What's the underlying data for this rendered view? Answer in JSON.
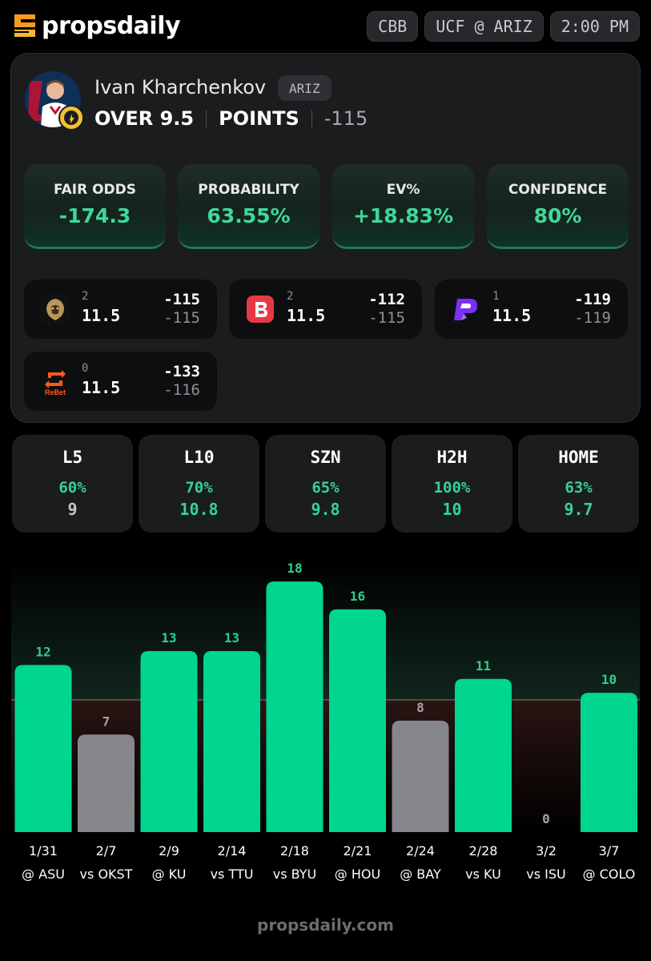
{
  "header": {
    "brand": "propsdaily",
    "pills": [
      "CBB",
      "UCF @ ARIZ",
      "2:00 PM"
    ]
  },
  "player": {
    "name": "Ivan Kharchenkov",
    "team": "ARIZ",
    "side_line": "OVER 9.5",
    "stat": "POINTS",
    "odds": "-115"
  },
  "metrics": [
    {
      "label": "FAIR ODDS",
      "value": "-174.3"
    },
    {
      "label": "PROBABILITY",
      "value": "63.55%"
    },
    {
      "label": "EV%",
      "value": "+18.83%"
    },
    {
      "label": "CONFIDENCE",
      "value": "80%"
    }
  ],
  "books": [
    {
      "icon": "lion-book-icon",
      "count": "2",
      "line": "11.5",
      "over": "-115",
      "under": "-115"
    },
    {
      "icon": "betr-b-icon",
      "count": "2",
      "line": "11.5",
      "over": "-112",
      "under": "-115"
    },
    {
      "icon": "prizepicks-p-icon",
      "count": "1",
      "line": "11.5",
      "over": "-119",
      "under": "-119"
    },
    {
      "icon": "rebet-icon",
      "count": "0",
      "line": "11.5",
      "over": "-133",
      "under": "-116",
      "brand_text": "ReBet"
    }
  ],
  "splits": [
    {
      "label": "L5",
      "pct": "60%",
      "avg": "9",
      "avg_color": "#c4c6c9"
    },
    {
      "label": "L10",
      "pct": "70%",
      "avg": "10.8",
      "avg_color": "#35d393"
    },
    {
      "label": "SZN",
      "pct": "65%",
      "avg": "9.8",
      "avg_color": "#35d393"
    },
    {
      "label": "H2H",
      "pct": "100%",
      "avg": "10",
      "avg_color": "#35d393"
    },
    {
      "label": "HOME",
      "pct": "63%",
      "avg": "9.7",
      "avg_color": "#35d393"
    }
  ],
  "chart_data": {
    "type": "bar",
    "line": 9.5,
    "ylim": [
      0,
      19.5
    ],
    "colors": {
      "hit": "#00d68f",
      "miss": "#86878c",
      "hit_label": "#2fd08d",
      "miss_label": "#a3a5a8"
    },
    "games": [
      {
        "date": "1/31",
        "opp": "@ ASU",
        "value": 12
      },
      {
        "date": "2/7",
        "opp": "vs OKST",
        "value": 7
      },
      {
        "date": "2/9",
        "opp": "@ KU",
        "value": 13
      },
      {
        "date": "2/14",
        "opp": "vs TTU",
        "value": 13
      },
      {
        "date": "2/18",
        "opp": "vs BYU",
        "value": 18
      },
      {
        "date": "2/21",
        "opp": "@ HOU",
        "value": 16
      },
      {
        "date": "2/24",
        "opp": "@ BAY",
        "value": 8
      },
      {
        "date": "2/28",
        "opp": "vs KU",
        "value": 11
      },
      {
        "date": "3/2",
        "opp": "vs ISU",
        "value": 0
      },
      {
        "date": "3/7",
        "opp": "@ COLO",
        "value": 10
      }
    ]
  },
  "footer": {
    "text": "propsdaily.com"
  }
}
